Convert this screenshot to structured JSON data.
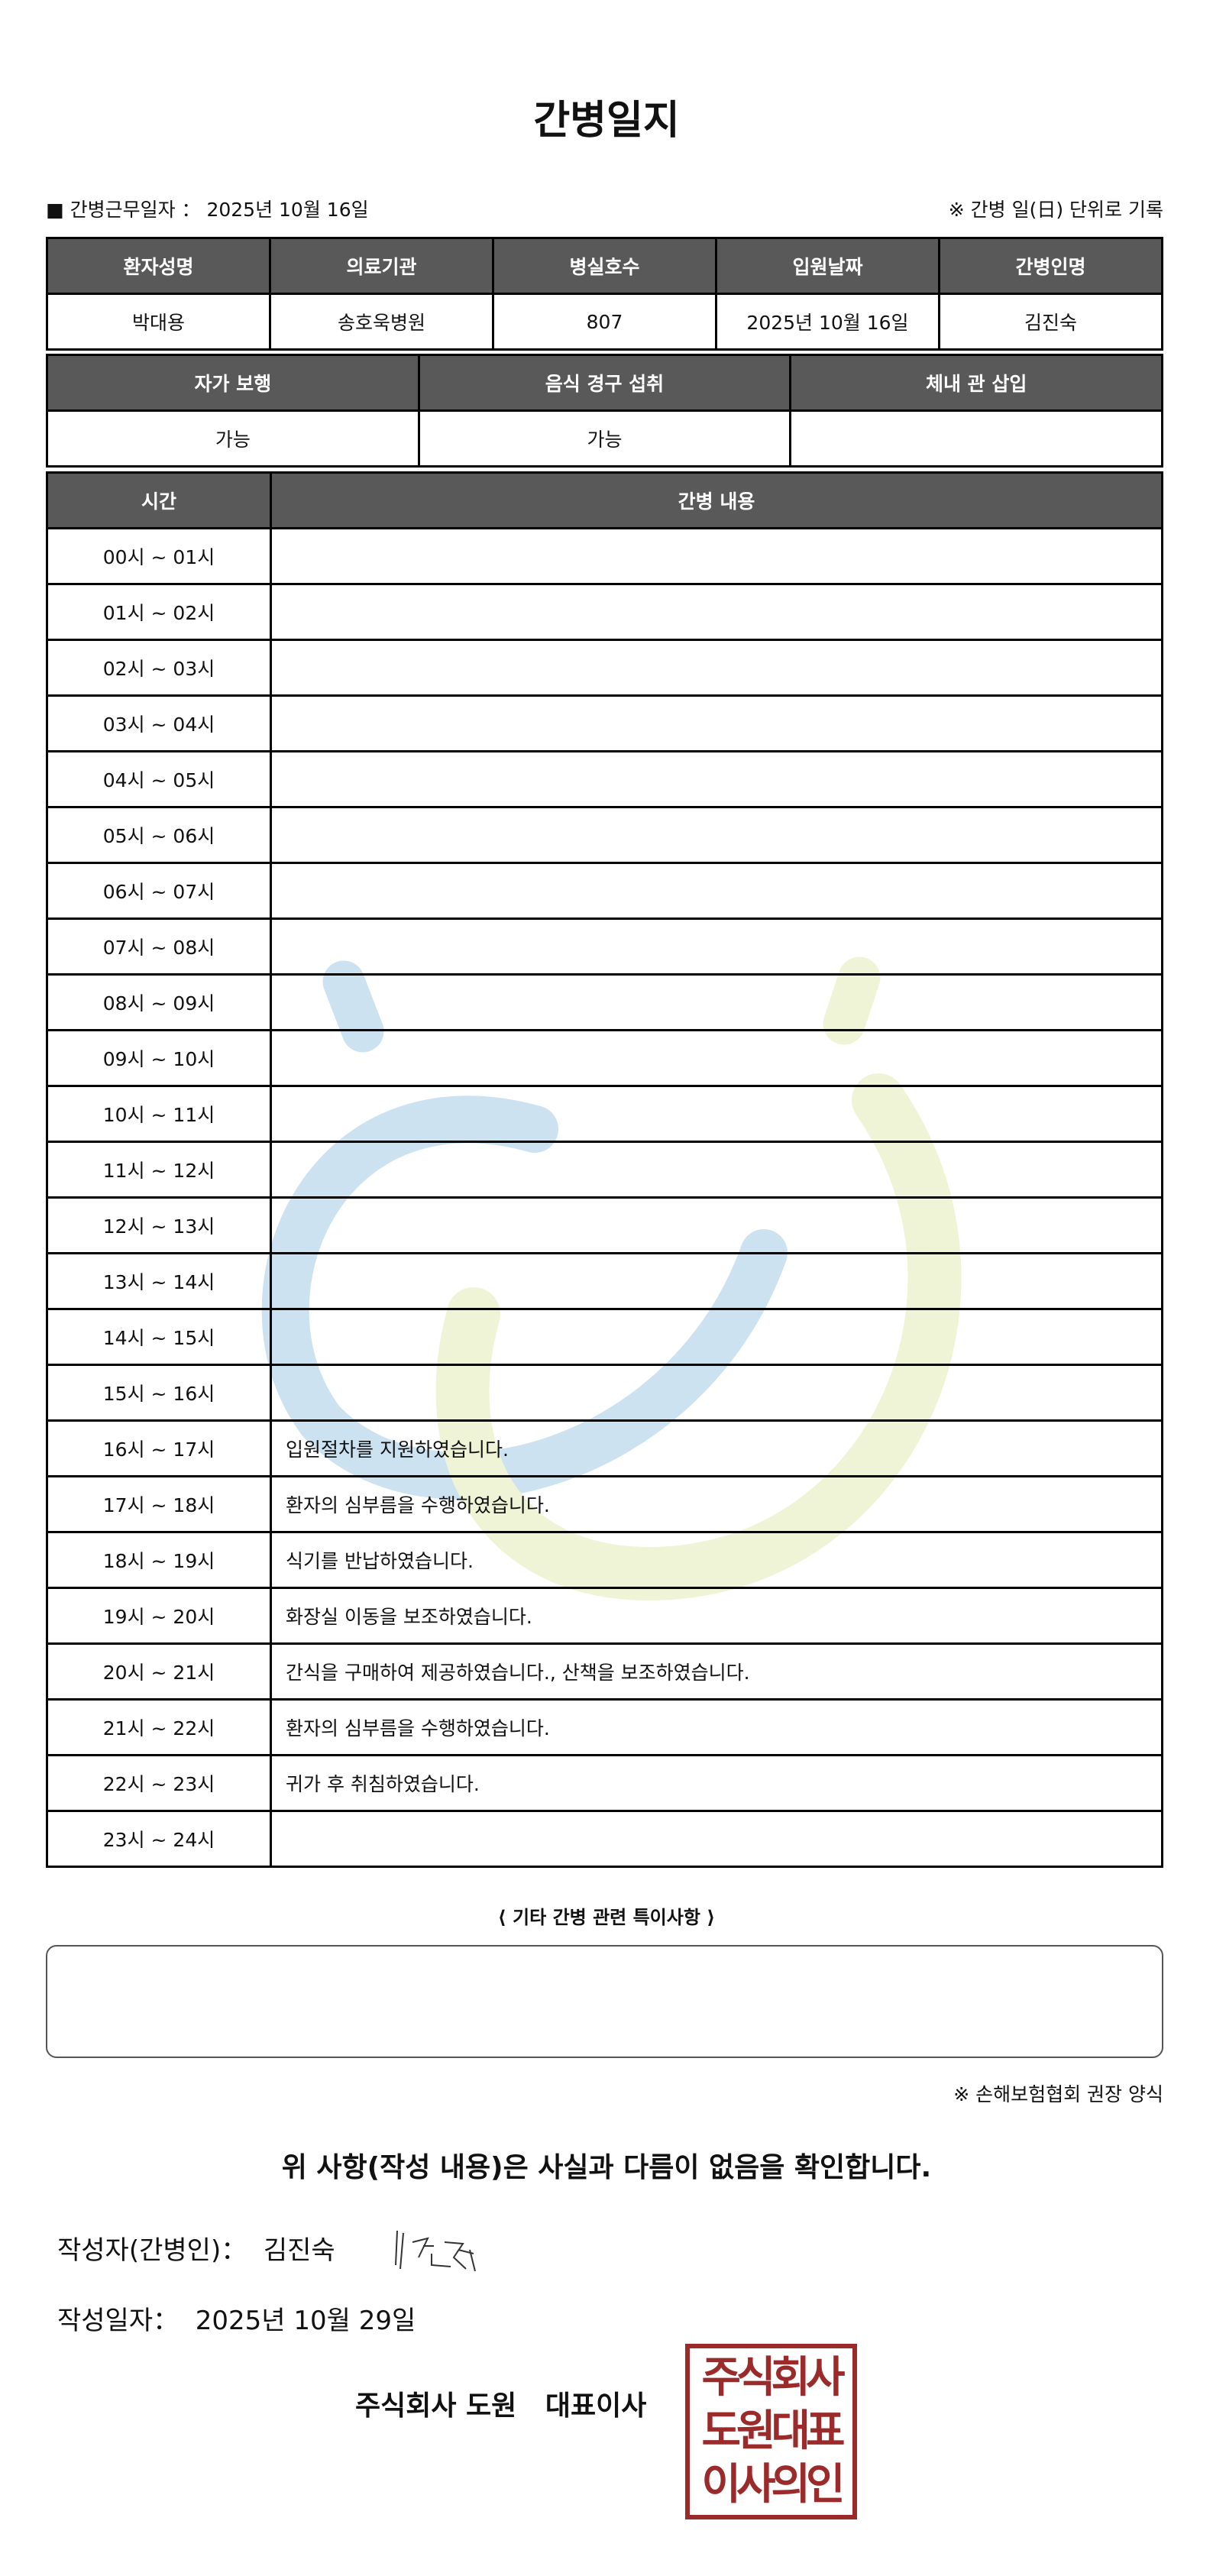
{
  "title": "간병일지",
  "meta": {
    "label": "■ 간병근무일자 ： 2025년 10월 16일",
    "note": "※ 간병 일(日) 단위로 기록"
  },
  "info": {
    "headers": [
      "환자성명",
      "의료기관",
      "병실호수",
      "입원날짜",
      "간병인명"
    ],
    "values": [
      "박대용",
      "송호욱병원",
      "807",
      "2025년 10월 16일",
      "김진숙"
    ]
  },
  "status": {
    "headers": [
      "자가 보행",
      "음식 경구 섭취",
      "체내 관 삽입"
    ],
    "values": [
      "가능",
      "가능",
      ""
    ]
  },
  "log": {
    "headers": [
      "시간",
      "간병 내용"
    ],
    "rows": [
      {
        "time": "00시 ~ 01시",
        "content": ""
      },
      {
        "time": "01시 ~ 02시",
        "content": ""
      },
      {
        "time": "02시 ~ 03시",
        "content": ""
      },
      {
        "time": "03시 ~ 04시",
        "content": ""
      },
      {
        "time": "04시 ~ 05시",
        "content": ""
      },
      {
        "time": "05시 ~ 06시",
        "content": ""
      },
      {
        "time": "06시 ~ 07시",
        "content": ""
      },
      {
        "time": "07시 ~ 08시",
        "content": ""
      },
      {
        "time": "08시 ~ 09시",
        "content": ""
      },
      {
        "time": "09시 ~ 10시",
        "content": ""
      },
      {
        "time": "10시 ~ 11시",
        "content": ""
      },
      {
        "time": "11시 ~ 12시",
        "content": ""
      },
      {
        "time": "12시 ~ 13시",
        "content": ""
      },
      {
        "time": "13시 ~ 14시",
        "content": ""
      },
      {
        "time": "14시 ~ 15시",
        "content": ""
      },
      {
        "time": "15시 ~ 16시",
        "content": ""
      },
      {
        "time": "16시 ~ 17시",
        "content": "입원절차를 지원하였습니다."
      },
      {
        "time": "17시 ~ 18시",
        "content": "환자의 심부름을 수행하였습니다."
      },
      {
        "time": "18시 ~ 19시",
        "content": "식기를 반납하였습니다."
      },
      {
        "time": "19시 ~ 20시",
        "content": "화장실 이동을 보조하였습니다."
      },
      {
        "time": "20시 ~ 21시",
        "content": "간식을 구매하여 제공하였습니다., 산책을 보조하였습니다."
      },
      {
        "time": "21시 ~ 22시",
        "content": "환자의 심부름을 수행하였습니다."
      },
      {
        "time": "22시 ~ 23시",
        "content": "귀가 후 취침하였습니다."
      },
      {
        "time": "23시 ~ 24시",
        "content": ""
      }
    ]
  },
  "special": {
    "label": "⟨ 기타 간병 관련 특이사항 ⟩",
    "value": ""
  },
  "form_note": "※ 손해보험협회 권장 양식",
  "confirm": "위 사항(작성 내용)은 사실과 다름이 없음을 확인합니다.",
  "writer": {
    "label": "작성자(간병인)：",
    "name": "김진숙"
  },
  "written_date": {
    "label": "작성일자：",
    "value": "2025년 10월 29일"
  },
  "company": "주식회사 도원   대표이사",
  "stamp": {
    "lines": [
      "주식회사",
      "도원대표",
      "이사의인"
    ],
    "color": "#9b2a2a"
  },
  "colors": {
    "header_bg": "#595959",
    "watermark_blue": "#c8dff0",
    "watermark_green": "#eef3d3"
  }
}
